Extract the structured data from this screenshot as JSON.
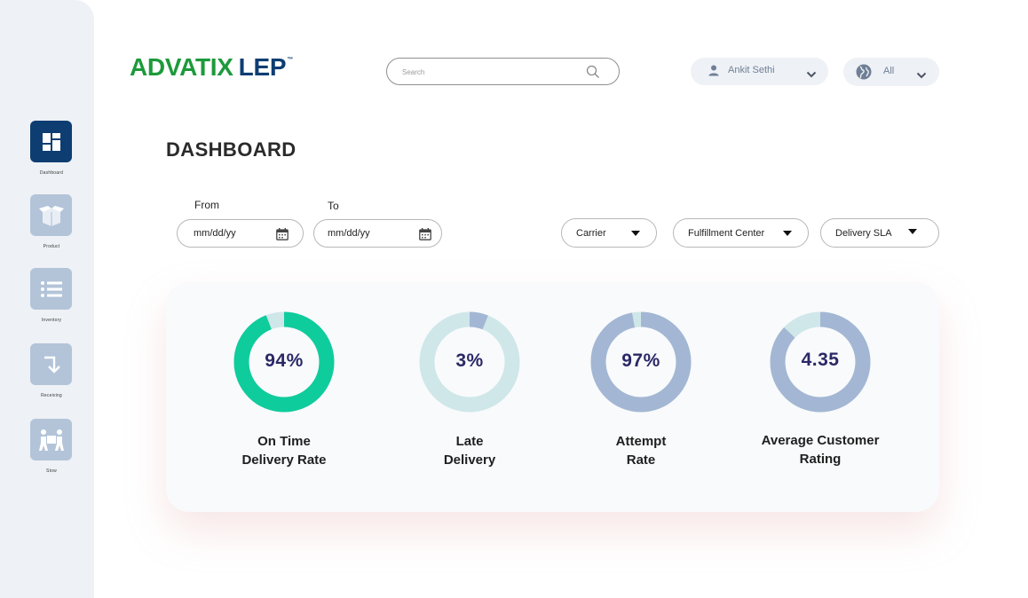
{
  "sidebar": {
    "items": [
      {
        "label": "Dashboard",
        "icon": "dashboard-grid-icon",
        "active": true
      },
      {
        "label": "Product",
        "icon": "open-box-icon",
        "active": false
      },
      {
        "label": "Inventory",
        "icon": "list-icon",
        "active": false
      },
      {
        "label": "Receiving",
        "icon": "arrow-down-return-icon",
        "active": false
      },
      {
        "label": "Stow",
        "icon": "people-carry-box-icon",
        "active": false
      }
    ]
  },
  "header": {
    "logo": {
      "part1": "ADVATIX",
      "part2": "LEP",
      "tm": "™"
    },
    "search": {
      "placeholder": "Search"
    },
    "user": {
      "name": "Ankit Sethi"
    },
    "region": {
      "value": "All"
    }
  },
  "page": {
    "title": "DASHBOARD"
  },
  "filters": {
    "from": {
      "label": "From",
      "value": "mm/dd/yy"
    },
    "to": {
      "label": "To",
      "value": "mm/dd/yy"
    },
    "carrier": "Carrier",
    "fulfillment_center": "Fulfillment Center",
    "delivery_sla": "Delivery SLA"
  },
  "kpis": [
    {
      "value_text": "94%",
      "label_line1": "On Time",
      "label_line2": "Delivery Rate",
      "fraction": 0.94,
      "main_color": "#0fcc9c",
      "rest_color": "#cfe7e9"
    },
    {
      "value_text": "3%",
      "label_line1": "Late",
      "label_line2": "Delivery",
      "fraction": 0.03,
      "main_color": "#a3b7d4",
      "rest_color": "#cfe7e9"
    },
    {
      "value_text": "97%",
      "label_line1": "Attempt",
      "label_line2": "Rate",
      "fraction": 0.97,
      "main_color": "#a3b7d4",
      "rest_color": "#cfe7e9"
    },
    {
      "value_text": "4.35",
      "label_line1": "Average Customer",
      "label_line2": "Rating",
      "fraction": 0.87,
      "main_color": "#a3b7d4",
      "rest_color": "#cfe7e9"
    }
  ],
  "colors": {
    "brand_navy": "#0e3d72",
    "brand_green": "#1d9a3b",
    "sidebar_bg": "#eef1f5",
    "tile_inactive": "#b3c4d9",
    "kpi_text": "#2b2866"
  }
}
